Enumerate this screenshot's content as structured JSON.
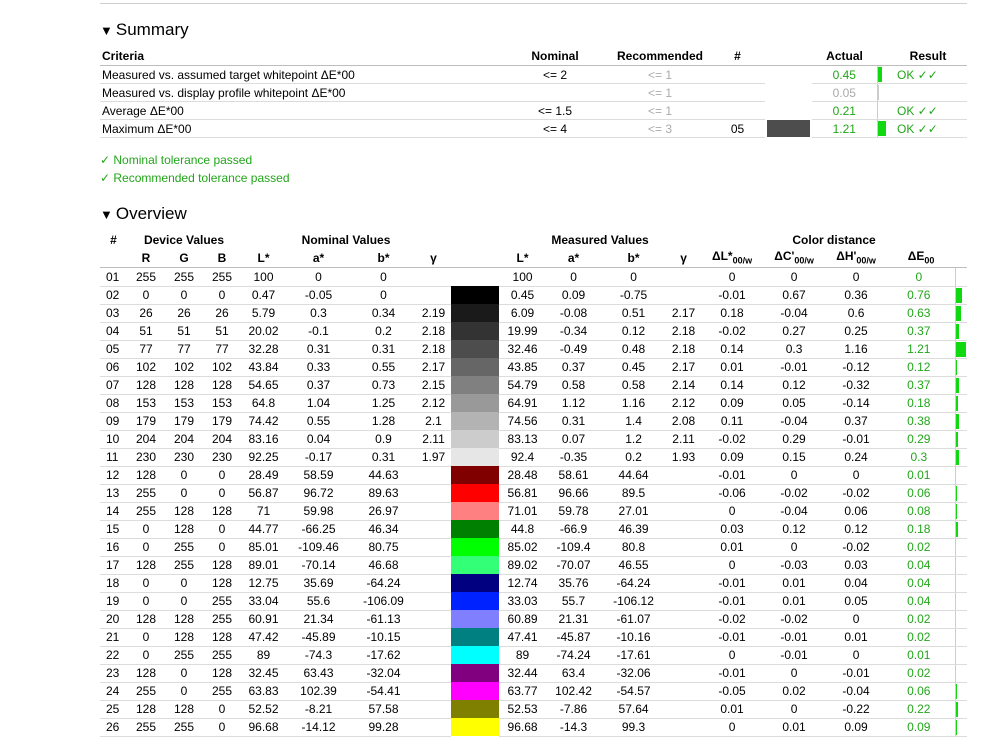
{
  "summary": {
    "title": "Summary",
    "headers": {
      "criteria": "Criteria",
      "nominal": "Nominal",
      "recommended": "Recommended",
      "num": "#",
      "actual": "Actual",
      "result": "Result"
    },
    "rows": [
      {
        "criteria": "Measured vs. assumed target whitepoint ΔE*00",
        "nominal": "<= 2",
        "recommended": "<= 1",
        "num": "",
        "swatch": "",
        "actual": "0.45",
        "actual_color": "green",
        "bar": 0.16,
        "result": "OK ✓✓"
      },
      {
        "criteria": "Measured vs. display profile whitepoint ΔE*00",
        "nominal": "",
        "recommended": "<= 1",
        "num": "",
        "swatch": "",
        "actual": "0.05",
        "actual_color": "grey",
        "bar": 0.01,
        "result": ""
      },
      {
        "criteria": "Average ΔE*00",
        "nominal": "<= 1.5",
        "recommended": "<= 1",
        "num": "",
        "swatch": "",
        "actual": "0.21",
        "actual_color": "green",
        "bar": 0.0,
        "result": "OK ✓✓"
      },
      {
        "criteria": "Maximum ΔE*00",
        "nominal": "<= 4",
        "recommended": "<= 3",
        "num": "05",
        "swatch": "#4d4d4d",
        "actual": "1.21",
        "actual_color": "green",
        "bar": 0.3,
        "result": "OK ✓✓"
      }
    ]
  },
  "notes": [
    "✓ Nominal tolerance passed",
    "✓ Recommended tolerance passed"
  ],
  "overview": {
    "title": "Overview",
    "group_headers": {
      "num": "#",
      "device": "Device Values",
      "nominal": "Nominal Values",
      "measured": "Measured Values",
      "distance": "Color distance"
    },
    "col_headers": {
      "r": "R",
      "g": "G",
      "b": "B",
      "L": "L*",
      "a": "a*",
      "bstar": "b*",
      "gamma": "γ",
      "dL": "ΔL*",
      "dC": "ΔC'",
      "dH": "ΔH'",
      "dE": "ΔE",
      "sub_w": "00/w",
      "sub_00": "00"
    },
    "rows": [
      {
        "n": "01",
        "r": "255",
        "g": "255",
        "b": "255",
        "nl": "100",
        "na": "0",
        "nb": "0",
        "ng": "",
        "color": "#ffffff",
        "ml": "100",
        "ma": "0",
        "mb": "0",
        "mg": "",
        "dl": "0",
        "dc": "0",
        "dh": "0",
        "de": "0",
        "bar": 0.0
      },
      {
        "n": "02",
        "r": "0",
        "g": "0",
        "b": "0",
        "nl": "0.47",
        "na": "-0.05",
        "nb": "0",
        "ng": "",
        "color": "#000000",
        "ml": "0.45",
        "ma": "0.09",
        "mb": "-0.75",
        "mg": "",
        "dl": "-0.01",
        "dc": "0.67",
        "dh": "0.36",
        "de": "0.76",
        "bar": 0.63
      },
      {
        "n": "03",
        "r": "26",
        "g": "26",
        "b": "26",
        "nl": "5.79",
        "na": "0.3",
        "nb": "0.34",
        "ng": "2.19",
        "color": "#1a1a1a",
        "ml": "6.09",
        "ma": "-0.08",
        "mb": "0.51",
        "mg": "2.17",
        "dl": "0.18",
        "dc": "-0.04",
        "dh": "0.6",
        "de": "0.63",
        "bar": 0.52
      },
      {
        "n": "04",
        "r": "51",
        "g": "51",
        "b": "51",
        "nl": "20.02",
        "na": "-0.1",
        "nb": "0.2",
        "ng": "2.18",
        "color": "#333333",
        "ml": "19.99",
        "ma": "-0.34",
        "mb": "0.12",
        "mg": "2.18",
        "dl": "-0.02",
        "dc": "0.27",
        "dh": "0.25",
        "de": "0.37",
        "bar": 0.31
      },
      {
        "n": "05",
        "r": "77",
        "g": "77",
        "b": "77",
        "nl": "32.28",
        "na": "0.31",
        "nb": "0.31",
        "ng": "2.18",
        "color": "#4d4d4d",
        "ml": "32.46",
        "ma": "-0.49",
        "mb": "0.48",
        "mg": "2.18",
        "dl": "0.14",
        "dc": "0.3",
        "dh": "1.16",
        "de": "1.21",
        "bar": 1.0
      },
      {
        "n": "06",
        "r": "102",
        "g": "102",
        "b": "102",
        "nl": "43.84",
        "na": "0.33",
        "nb": "0.55",
        "ng": "2.17",
        "color": "#666666",
        "ml": "43.85",
        "ma": "0.37",
        "mb": "0.45",
        "mg": "2.17",
        "dl": "0.01",
        "dc": "-0.01",
        "dh": "-0.12",
        "de": "0.12",
        "bar": 0.1
      },
      {
        "n": "07",
        "r": "128",
        "g": "128",
        "b": "128",
        "nl": "54.65",
        "na": "0.37",
        "nb": "0.73",
        "ng": "2.15",
        "color": "#808080",
        "ml": "54.79",
        "ma": "0.58",
        "mb": "0.58",
        "mg": "2.14",
        "dl": "0.14",
        "dc": "0.12",
        "dh": "-0.32",
        "de": "0.37",
        "bar": 0.31
      },
      {
        "n": "08",
        "r": "153",
        "g": "153",
        "b": "153",
        "nl": "64.8",
        "na": "1.04",
        "nb": "1.25",
        "ng": "2.12",
        "color": "#999999",
        "ml": "64.91",
        "ma": "1.12",
        "mb": "1.16",
        "mg": "2.12",
        "dl": "0.09",
        "dc": "0.05",
        "dh": "-0.14",
        "de": "0.18",
        "bar": 0.15
      },
      {
        "n": "09",
        "r": "179",
        "g": "179",
        "b": "179",
        "nl": "74.42",
        "na": "0.55",
        "nb": "1.28",
        "ng": "2.1",
        "color": "#b3b3b3",
        "ml": "74.56",
        "ma": "0.31",
        "mb": "1.4",
        "mg": "2.08",
        "dl": "0.11",
        "dc": "-0.04",
        "dh": "0.37",
        "de": "0.38",
        "bar": 0.31
      },
      {
        "n": "10",
        "r": "204",
        "g": "204",
        "b": "204",
        "nl": "83.16",
        "na": "0.04",
        "nb": "0.9",
        "ng": "2.11",
        "color": "#cccccc",
        "ml": "83.13",
        "ma": "0.07",
        "mb": "1.2",
        "mg": "2.11",
        "dl": "-0.02",
        "dc": "0.29",
        "dh": "-0.01",
        "de": "0.29",
        "bar": 0.24
      },
      {
        "n": "11",
        "r": "230",
        "g": "230",
        "b": "230",
        "nl": "92.25",
        "na": "-0.17",
        "nb": "0.31",
        "ng": "1.97",
        "color": "#e6e6e6",
        "ml": "92.4",
        "ma": "-0.35",
        "mb": "0.2",
        "mg": "1.93",
        "dl": "0.09",
        "dc": "0.15",
        "dh": "0.24",
        "de": "0.3",
        "bar": 0.25
      },
      {
        "n": "12",
        "r": "128",
        "g": "0",
        "b": "0",
        "nl": "28.49",
        "na": "58.59",
        "nb": "44.63",
        "ng": "",
        "color": "#800000",
        "ml": "28.48",
        "ma": "58.61",
        "mb": "44.64",
        "mg": "",
        "dl": "-0.01",
        "dc": "0",
        "dh": "0",
        "de": "0.01",
        "bar": 0.01
      },
      {
        "n": "13",
        "r": "255",
        "g": "0",
        "b": "0",
        "nl": "56.87",
        "na": "96.72",
        "nb": "89.63",
        "ng": "",
        "color": "#ff0000",
        "ml": "56.81",
        "ma": "96.66",
        "mb": "89.5",
        "mg": "",
        "dl": "-0.06",
        "dc": "-0.02",
        "dh": "-0.02",
        "de": "0.06",
        "bar": 0.05
      },
      {
        "n": "14",
        "r": "255",
        "g": "128",
        "b": "128",
        "nl": "71",
        "na": "59.98",
        "nb": "26.97",
        "ng": "",
        "color": "#ff8080",
        "ml": "71.01",
        "ma": "59.78",
        "mb": "27.01",
        "mg": "",
        "dl": "0",
        "dc": "-0.04",
        "dh": "0.06",
        "de": "0.08",
        "bar": 0.07
      },
      {
        "n": "15",
        "r": "0",
        "g": "128",
        "b": "0",
        "nl": "44.77",
        "na": "-66.25",
        "nb": "46.34",
        "ng": "",
        "color": "#008000",
        "ml": "44.8",
        "ma": "-66.9",
        "mb": "46.39",
        "mg": "",
        "dl": "0.03",
        "dc": "0.12",
        "dh": "0.12",
        "de": "0.18",
        "bar": 0.15
      },
      {
        "n": "16",
        "r": "0",
        "g": "255",
        "b": "0",
        "nl": "85.01",
        "na": "-109.46",
        "nb": "80.75",
        "ng": "",
        "color": "#00ff00",
        "ml": "85.02",
        "ma": "-109.4",
        "mb": "80.8",
        "mg": "",
        "dl": "0.01",
        "dc": "0",
        "dh": "-0.02",
        "de": "0.02",
        "bar": 0.02
      },
      {
        "n": "17",
        "r": "128",
        "g": "255",
        "b": "128",
        "nl": "89.01",
        "na": "-70.14",
        "nb": "46.68",
        "ng": "",
        "color": "#33ff77",
        "ml": "89.02",
        "ma": "-70.07",
        "mb": "46.55",
        "mg": "",
        "dl": "0",
        "dc": "-0.03",
        "dh": "0.03",
        "de": "0.04",
        "bar": 0.03
      },
      {
        "n": "18",
        "r": "0",
        "g": "0",
        "b": "128",
        "nl": "12.75",
        "na": "35.69",
        "nb": "-64.24",
        "ng": "",
        "color": "#000080",
        "ml": "12.74",
        "ma": "35.76",
        "mb": "-64.24",
        "mg": "",
        "dl": "-0.01",
        "dc": "0.01",
        "dh": "0.04",
        "de": "0.04",
        "bar": 0.03
      },
      {
        "n": "19",
        "r": "0",
        "g": "0",
        "b": "255",
        "nl": "33.04",
        "na": "55.6",
        "nb": "-106.09",
        "ng": "",
        "color": "#0022ff",
        "ml": "33.03",
        "ma": "55.7",
        "mb": "-106.12",
        "mg": "",
        "dl": "-0.01",
        "dc": "0.01",
        "dh": "0.05",
        "de": "0.04",
        "bar": 0.03
      },
      {
        "n": "20",
        "r": "128",
        "g": "128",
        "b": "255",
        "nl": "60.91",
        "na": "21.34",
        "nb": "-61.13",
        "ng": "",
        "color": "#8080ff",
        "ml": "60.89",
        "ma": "21.31",
        "mb": "-61.07",
        "mg": "",
        "dl": "-0.02",
        "dc": "-0.02",
        "dh": "0",
        "de": "0.02",
        "bar": 0.02
      },
      {
        "n": "21",
        "r": "0",
        "g": "128",
        "b": "128",
        "nl": "47.42",
        "na": "-45.89",
        "nb": "-10.15",
        "ng": "",
        "color": "#008080",
        "ml": "47.41",
        "ma": "-45.87",
        "mb": "-10.16",
        "mg": "",
        "dl": "-0.01",
        "dc": "-0.01",
        "dh": "0.01",
        "de": "0.02",
        "bar": 0.02
      },
      {
        "n": "22",
        "r": "0",
        "g": "255",
        "b": "255",
        "nl": "89",
        "na": "-74.3",
        "nb": "-17.62",
        "ng": "",
        "color": "#00ffff",
        "ml": "89",
        "ma": "-74.24",
        "mb": "-17.61",
        "mg": "",
        "dl": "0",
        "dc": "-0.01",
        "dh": "0",
        "de": "0.01",
        "bar": 0.01
      },
      {
        "n": "23",
        "r": "128",
        "g": "0",
        "b": "128",
        "nl": "32.45",
        "na": "63.43",
        "nb": "-32.04",
        "ng": "",
        "color": "#800080",
        "ml": "32.44",
        "ma": "63.4",
        "mb": "-32.06",
        "mg": "",
        "dl": "-0.01",
        "dc": "0",
        "dh": "-0.01",
        "de": "0.02",
        "bar": 0.02
      },
      {
        "n": "24",
        "r": "255",
        "g": "0",
        "b": "255",
        "nl": "63.83",
        "na": "102.39",
        "nb": "-54.41",
        "ng": "",
        "color": "#ff00ff",
        "ml": "63.77",
        "ma": "102.42",
        "mb": "-54.57",
        "mg": "",
        "dl": "-0.05",
        "dc": "0.02",
        "dh": "-0.04",
        "de": "0.06",
        "bar": 0.05
      },
      {
        "n": "25",
        "r": "128",
        "g": "128",
        "b": "0",
        "nl": "52.52",
        "na": "-8.21",
        "nb": "57.58",
        "ng": "",
        "color": "#808000",
        "ml": "52.53",
        "ma": "-7.86",
        "mb": "57.64",
        "mg": "",
        "dl": "0.01",
        "dc": "0",
        "dh": "-0.22",
        "de": "0.22",
        "bar": 0.18
      },
      {
        "n": "26",
        "r": "255",
        "g": "255",
        "b": "0",
        "nl": "96.68",
        "na": "-14.12",
        "nb": "99.28",
        "ng": "",
        "color": "#ffff00",
        "ml": "96.68",
        "ma": "-14.3",
        "mb": "99.3",
        "mg": "",
        "dl": "0",
        "dc": "0.01",
        "dh": "0.09",
        "de": "0.09",
        "bar": 0.07
      }
    ]
  },
  "colors": {
    "green": "#22a61a",
    "bar_green": "#11d911",
    "grey": "#aaaaaa"
  }
}
